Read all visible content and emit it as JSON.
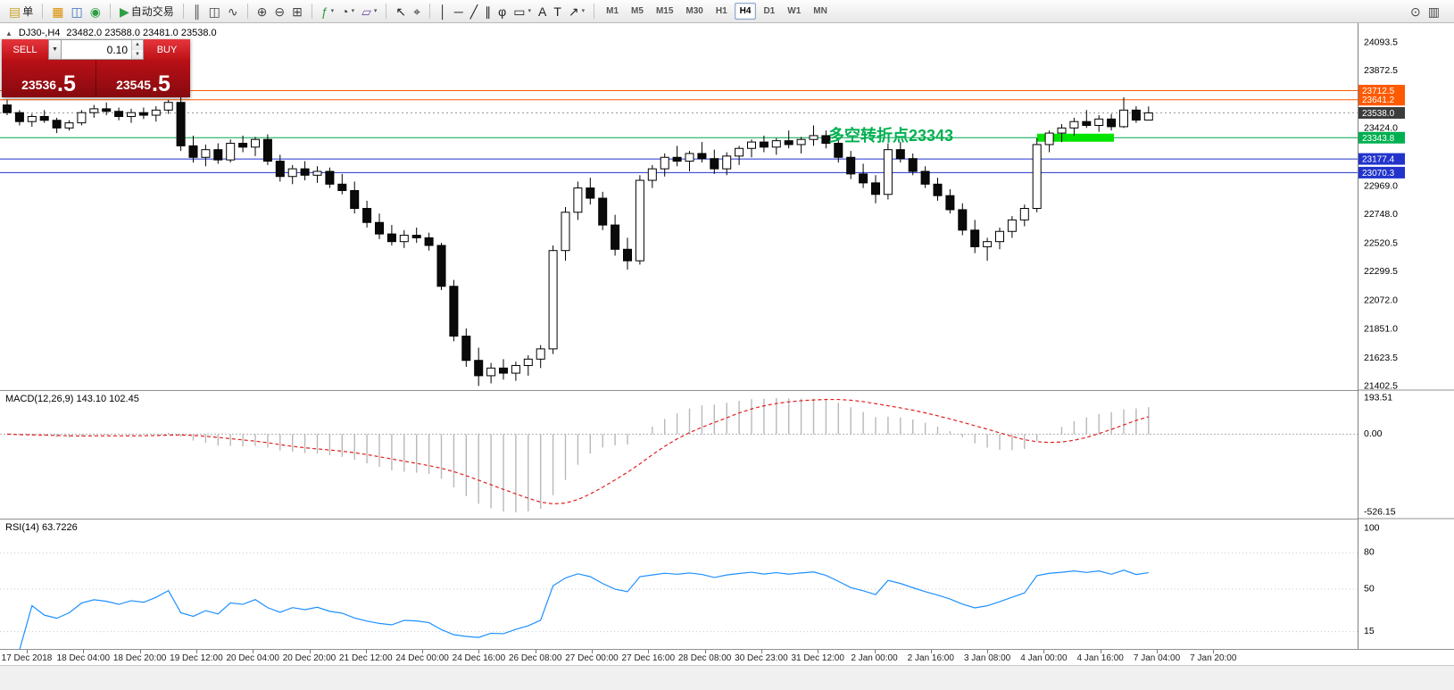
{
  "toolbar": {
    "left_groups": [
      {
        "items": [
          {
            "name": "new-order-button",
            "glyph": "▤",
            "color": "#c9a227",
            "label": "单"
          }
        ]
      },
      {
        "items": [
          {
            "name": "chart-window-icon",
            "glyph": "▦",
            "color": "#d98f00"
          },
          {
            "name": "market-watch-icon",
            "glyph": "◫",
            "color": "#3b6fc4"
          },
          {
            "name": "help-icon",
            "glyph": "◉",
            "color": "#2f9e44"
          }
        ]
      },
      {
        "items": [
          {
            "name": "autotrade-button",
            "glyph": "▶",
            "color": "#2f9e44",
            "label": "自动交易"
          }
        ]
      },
      {
        "items": [
          {
            "name": "bar-chart-icon",
            "glyph": "║",
            "color": "#444444"
          },
          {
            "name": "candlestick-chart-icon",
            "glyph": "◫",
            "color": "#444444"
          },
          {
            "name": "line-chart-icon",
            "glyph": "∿",
            "color": "#444444"
          }
        ]
      },
      {
        "items": [
          {
            "name": "zoom-in-icon",
            "glyph": "⊕",
            "color": "#444444"
          },
          {
            "name": "zoom-out-icon",
            "glyph": "⊖",
            "color": "#444444"
          },
          {
            "name": "tile-windows-icon",
            "glyph": "⊞",
            "color": "#444444"
          }
        ]
      },
      {
        "items": [
          {
            "name": "indicators-icon",
            "glyph": "ƒ",
            "color": "#2f9e44",
            "dropdown": true
          },
          {
            "name": "periods-icon",
            "glyph": "◔",
            "color": "#444444",
            "dropdown": true
          },
          {
            "name": "templates-icon",
            "glyph": "▱",
            "color": "#7048a8",
            "dropdown": true
          }
        ]
      },
      {
        "items": [
          {
            "name": "cursor-icon",
            "glyph": "↖",
            "color": "#222222"
          },
          {
            "name": "crosshair-icon",
            "glyph": "⌖",
            "color": "#222222"
          }
        ]
      },
      {
        "items": [
          {
            "name": "vertical-line-icon",
            "glyph": "│",
            "color": "#222222"
          },
          {
            "name": "horizontal-line-icon",
            "glyph": "─",
            "color": "#222222"
          },
          {
            "name": "trendline-icon",
            "glyph": "╱",
            "color": "#222222"
          },
          {
            "name": "channel-icon",
            "glyph": "∥",
            "color": "#222222"
          },
          {
            "name": "fibonacci-icon",
            "glyph": "φ",
            "color": "#222222"
          },
          {
            "name": "shapes-icon",
            "glyph": "▭",
            "color": "#222222",
            "dropdown": true
          },
          {
            "name": "text-icon",
            "glyph": "A",
            "color": "#222222"
          },
          {
            "name": "text-label-icon",
            "glyph": "T",
            "color": "#222222"
          },
          {
            "name": "arrows-icon",
            "glyph": "↗",
            "color": "#222222",
            "dropdown": true
          }
        ]
      }
    ],
    "timeframes": [
      "M1",
      "M5",
      "M15",
      "M30",
      "H1",
      "H4",
      "D1",
      "W1",
      "MN"
    ],
    "active_timeframe": "H4",
    "right_icons": [
      {
        "name": "search-icon",
        "glyph": "⊙",
        "color": "#444444"
      },
      {
        "name": "data-window-icon",
        "glyph": "▥",
        "color": "#444444"
      }
    ]
  },
  "chart": {
    "toggle_glyph": "▲",
    "symbol_period": "DJ30-,H4",
    "ohlc_text": "23482.0 23588.0 23481.0 23538.0"
  },
  "trade_panel": {
    "sell_label": "SELL",
    "buy_label": "BUY",
    "volume": "0.10",
    "dropdown_glyph": "▼",
    "spin_up_glyph": "▲",
    "spin_down_glyph": "▼",
    "sell_price_main": "23536",
    "sell_price_big": ".5",
    "buy_price_main": "23545",
    "buy_price_big": ".5"
  },
  "macd_panel": {
    "label": "MACD(12,26,9) 143.10 102.45",
    "axis": [
      "193.51",
      "0.00",
      "-526.15"
    ]
  },
  "rsi_panel": {
    "label": "RSI(14) 63.7226",
    "axis": [
      "100",
      "80",
      "50",
      "15"
    ],
    "axis_values": [
      100,
      80,
      50,
      15
    ]
  },
  "chart_data": {
    "type": "candlestick",
    "symbol": "DJ30-",
    "timeframe": "H4",
    "current_ohlc": {
      "open": 23482.0,
      "high": 23588.0,
      "low": 23481.0,
      "close": 23538.0
    },
    "y_ticks": [
      24093.5,
      23872.5,
      23424.0,
      22969.0,
      22748.0,
      22520.5,
      22299.5,
      22072.0,
      21851.0,
      21623.5,
      21402.5
    ],
    "x_labels": [
      "17 Dec 2018",
      "18 Dec 04:00",
      "18 Dec 20:00",
      "19 Dec 12:00",
      "20 Dec 04:00",
      "20 Dec 20:00",
      "21 Dec 12:00",
      "24 Dec 00:00",
      "24 Dec 16:00",
      "26 Dec 08:00",
      "27 Dec 00:00",
      "27 Dec 16:00",
      "28 Dec 08:00",
      "30 Dec 23:00",
      "31 Dec 12:00",
      "2 Jan 00:00",
      "2 Jan 16:00",
      "3 Jan 08:00",
      "4 Jan 00:00",
      "4 Jan 16:00",
      "7 Jan 04:00",
      "7 Jan 20:00"
    ],
    "hlines": [
      {
        "price": 23712.5,
        "label": "23712.5",
        "color": "#ff5a00",
        "style": "solid"
      },
      {
        "price": 23641.2,
        "label": "23641.2",
        "color": "#ff5a00",
        "style": "solid"
      },
      {
        "price": 23538.0,
        "label": "23538.0",
        "color": "#999999",
        "style": "dotted",
        "tag_bg": "#3c3c3c"
      },
      {
        "price": 23343.8,
        "label": "23343.8",
        "color": "#00a651",
        "style": "solid",
        "tag_bg": "#00b050"
      },
      {
        "price": 23177.4,
        "label": "23177.4",
        "color": "#2233cc",
        "style": "solid"
      },
      {
        "price": 23070.3,
        "label": "23070.3",
        "color": "#2233cc",
        "style": "solid"
      }
    ],
    "highlight_segment": {
      "price": 23343.8,
      "x_start": 1162,
      "x_end": 1248,
      "width": 9,
      "color": "#00e400"
    },
    "annotation_text": {
      "text": "多空转折点23343",
      "color": "#00b050",
      "x": 928,
      "y": 158
    },
    "macd": {
      "fast": 12,
      "slow": 26,
      "signal": 9,
      "display": "143.10 102.45"
    },
    "rsi": {
      "period": 14,
      "display": "63.7226",
      "levels": [
        80,
        50,
        15
      ]
    },
    "candles": [
      [
        23600,
        23640,
        23520,
        23540
      ],
      [
        23540,
        23560,
        23440,
        23470
      ],
      [
        23470,
        23530,
        23430,
        23510
      ],
      [
        23510,
        23560,
        23460,
        23480
      ],
      [
        23480,
        23500,
        23380,
        23420
      ],
      [
        23420,
        23480,
        23400,
        23460
      ],
      [
        23460,
        23560,
        23440,
        23540
      ],
      [
        23540,
        23600,
        23500,
        23570
      ],
      [
        23570,
        23620,
        23520,
        23550
      ],
      [
        23550,
        23580,
        23480,
        23510
      ],
      [
        23510,
        23570,
        23460,
        23540
      ],
      [
        23540,
        23580,
        23490,
        23520
      ],
      [
        23520,
        23590,
        23470,
        23560
      ],
      [
        23560,
        23640,
        23530,
        23620
      ],
      [
        23620,
        23660,
        23240,
        23280
      ],
      [
        23280,
        23360,
        23150,
        23190
      ],
      [
        23190,
        23290,
        23120,
        23250
      ],
      [
        23250,
        23300,
        23140,
        23170
      ],
      [
        23170,
        23330,
        23150,
        23300
      ],
      [
        23300,
        23360,
        23230,
        23270
      ],
      [
        23270,
        23350,
        23200,
        23330
      ],
      [
        23330,
        23370,
        23130,
        23160
      ],
      [
        23160,
        23210,
        23000,
        23040
      ],
      [
        23040,
        23130,
        22980,
        23100
      ],
      [
        23100,
        23160,
        23010,
        23050
      ],
      [
        23050,
        23120,
        22990,
        23080
      ],
      [
        23080,
        23110,
        22950,
        22980
      ],
      [
        22980,
        23060,
        22900,
        22930
      ],
      [
        22930,
        23000,
        22750,
        22790
      ],
      [
        22790,
        22850,
        22640,
        22680
      ],
      [
        22680,
        22750,
        22550,
        22590
      ],
      [
        22590,
        22660,
        22500,
        22530
      ],
      [
        22530,
        22620,
        22480,
        22580
      ],
      [
        22580,
        22640,
        22520,
        22560
      ],
      [
        22560,
        22600,
        22460,
        22500
      ],
      [
        22500,
        22520,
        22150,
        22180
      ],
      [
        22180,
        22230,
        21750,
        21790
      ],
      [
        21790,
        21850,
        21550,
        21600
      ],
      [
        21600,
        21700,
        21400,
        21480
      ],
      [
        21480,
        21580,
        21420,
        21540
      ],
      [
        21540,
        21610,
        21450,
        21500
      ],
      [
        21500,
        21590,
        21440,
        21560
      ],
      [
        21560,
        21640,
        21480,
        21610
      ],
      [
        21610,
        21720,
        21540,
        21690
      ],
      [
        21690,
        22500,
        21650,
        22460
      ],
      [
        22460,
        22800,
        22380,
        22760
      ],
      [
        22760,
        23000,
        22700,
        22950
      ],
      [
        22950,
        23030,
        22820,
        22870
      ],
      [
        22870,
        22920,
        22620,
        22660
      ],
      [
        22660,
        22740,
        22420,
        22470
      ],
      [
        22470,
        22560,
        22310,
        22380
      ],
      [
        22380,
        23050,
        22350,
        23010
      ],
      [
        23010,
        23130,
        22950,
        23100
      ],
      [
        23100,
        23220,
        23040,
        23190
      ],
      [
        23190,
        23280,
        23120,
        23160
      ],
      [
        23160,
        23240,
        23080,
        23220
      ],
      [
        23220,
        23310,
        23150,
        23180
      ],
      [
        23180,
        23250,
        23060,
        23100
      ],
      [
        23100,
        23230,
        23050,
        23200
      ],
      [
        23200,
        23280,
        23130,
        23260
      ],
      [
        23260,
        23330,
        23190,
        23310
      ],
      [
        23310,
        23360,
        23230,
        23270
      ],
      [
        23270,
        23340,
        23210,
        23320
      ],
      [
        23320,
        23400,
        23260,
        23290
      ],
      [
        23290,
        23350,
        23220,
        23330
      ],
      [
        23330,
        23440,
        23280,
        23360
      ],
      [
        23360,
        23400,
        23260,
        23300
      ],
      [
        23300,
        23340,
        23150,
        23190
      ],
      [
        23190,
        23240,
        23020,
        23060
      ],
      [
        23060,
        23140,
        22950,
        22990
      ],
      [
        22990,
        23050,
        22830,
        22900
      ],
      [
        22900,
        23300,
        22860,
        23250
      ],
      [
        23250,
        23310,
        23150,
        23180
      ],
      [
        23180,
        23220,
        23050,
        23080
      ],
      [
        23080,
        23120,
        22950,
        22980
      ],
      [
        22980,
        23030,
        22850,
        22890
      ],
      [
        22890,
        22940,
        22750,
        22780
      ],
      [
        22780,
        22830,
        22580,
        22620
      ],
      [
        22620,
        22700,
        22440,
        22490
      ],
      [
        22490,
        22560,
        22380,
        22530
      ],
      [
        22530,
        22640,
        22470,
        22610
      ],
      [
        22610,
        22730,
        22560,
        22700
      ],
      [
        22700,
        22820,
        22650,
        22790
      ],
      [
        22790,
        23340,
        22760,
        23290
      ],
      [
        23290,
        23400,
        23230,
        23380
      ],
      [
        23380,
        23450,
        23310,
        23420
      ],
      [
        23420,
        23500,
        23360,
        23470
      ],
      [
        23470,
        23560,
        23420,
        23440
      ],
      [
        23440,
        23520,
        23390,
        23490
      ],
      [
        23490,
        23530,
        23400,
        23430
      ],
      [
        23430,
        23660,
        23420,
        23560
      ],
      [
        23560,
        23590,
        23460,
        23482
      ],
      [
        23482,
        23588,
        23481,
        23538
      ]
    ]
  }
}
